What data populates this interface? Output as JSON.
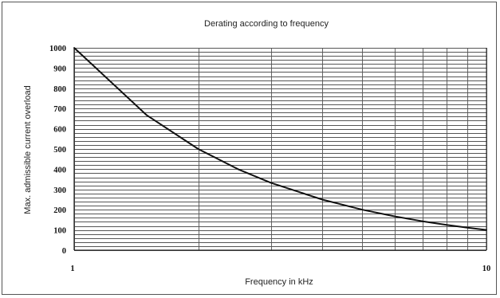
{
  "chart_data": {
    "type": "line",
    "title": "Derating according to frequency",
    "xlabel": "Frequency in kHz",
    "ylabel": "Max. admissible current overload",
    "x_scale": "log",
    "xlim": [
      1,
      10
    ],
    "ylim": [
      0,
      1000
    ],
    "x_tick_labels": [
      "1",
      "10"
    ],
    "y_tick_labels": [
      "0",
      "100",
      "200",
      "300",
      "400",
      "500",
      "600",
      "700",
      "800",
      "900",
      "1000"
    ],
    "y_ticks": [
      0,
      100,
      200,
      300,
      400,
      500,
      600,
      700,
      800,
      900,
      1000
    ],
    "x_gridlines": [
      1,
      2,
      3,
      4,
      5,
      6,
      7,
      8,
      9,
      10
    ],
    "y_gridline_step": 20,
    "grid": true,
    "legend": "none",
    "series": [
      {
        "x": [
          1,
          1.5,
          2,
          2.5,
          3,
          4,
          5,
          6,
          7,
          8,
          9,
          10
        ],
        "values": [
          1000,
          667,
          500,
          400,
          333,
          250,
          200,
          167,
          143,
          125,
          111,
          100
        ]
      }
    ],
    "colors": {
      "line": "#111111",
      "grid": "#555555",
      "axis": "#222222"
    }
  }
}
